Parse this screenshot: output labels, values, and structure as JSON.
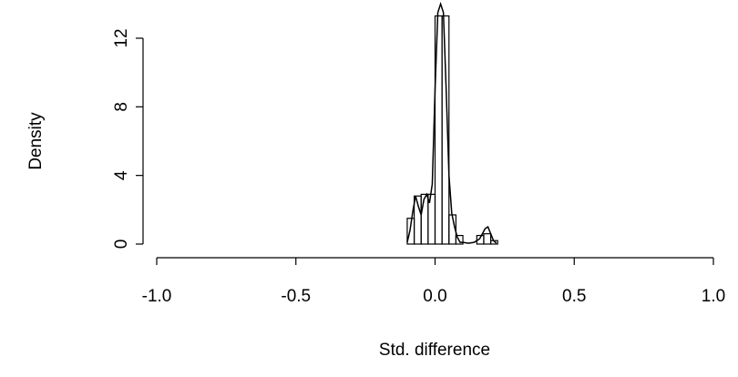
{
  "chart_data": {
    "type": "histogram",
    "x_label": "Std. difference",
    "y_label": "Density",
    "bins": [
      -0.1,
      -0.075,
      -0.05,
      -0.025,
      0,
      0.025,
      0.05,
      0.075,
      0.1,
      0.125,
      0.15,
      0.175,
      0.2,
      0.225
    ],
    "values": [
      1.5,
      2.8,
      2.9,
      2.9,
      13.3,
      13.3,
      1.7,
      0.5,
      0,
      0,
      0.5,
      0.6,
      0.2
    ],
    "density": {
      "x": [
        -0.1,
        -0.09,
        -0.08,
        -0.07,
        -0.06,
        -0.05,
        -0.04,
        -0.03,
        -0.02,
        -0.01,
        0,
        0.01,
        0.02,
        0.03,
        0.04,
        0.05,
        0.06,
        0.07,
        0.08,
        0.09,
        0.1,
        0.12,
        0.14,
        0.16,
        0.18,
        0.19,
        0.2,
        0.21,
        0.22
      ],
      "y": [
        0.1,
        0.8,
        1.9,
        2.8,
        2.2,
        1.7,
        2.6,
        2.9,
        2.4,
        3.5,
        9,
        13.5,
        14,
        13.5,
        9,
        4,
        1.8,
        1.0,
        0.4,
        0.1,
        0.1,
        0.05,
        0.1,
        0.3,
        0.9,
        1.0,
        0.6,
        0.2,
        0.05
      ]
    },
    "color": "#000000",
    "xlim": [
      -1,
      1
    ],
    "xticks": [
      {
        "value": -1,
        "label": "-1.0"
      },
      {
        "value": -0.5,
        "label": "-0.5"
      },
      {
        "value": 0,
        "label": "0.0"
      },
      {
        "value": 0.5,
        "label": "0.5"
      },
      {
        "value": 1,
        "label": "1.0"
      }
    ],
    "ylim": [
      0,
      14
    ],
    "yticks": [
      0,
      4,
      8,
      12
    ]
  }
}
